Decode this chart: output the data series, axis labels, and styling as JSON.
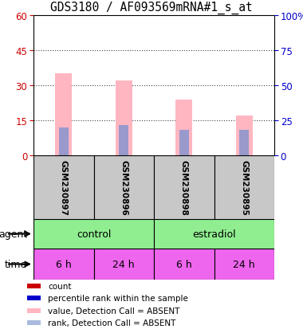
{
  "title": "GDS3180 / AF093569mRNA#1_s_at",
  "samples": [
    "GSM230897",
    "GSM230896",
    "GSM230898",
    "GSM230895"
  ],
  "pink_bar_values": [
    35,
    32,
    24,
    17
  ],
  "blue_bar_values": [
    12,
    13,
    11,
    11
  ],
  "pink_bar_color": "#FFB6C1",
  "blue_bar_color": "#9999CC",
  "left_ylim": [
    0,
    60
  ],
  "right_ylim": [
    0,
    100
  ],
  "left_yticks": [
    0,
    15,
    30,
    45,
    60
  ],
  "right_yticks": [
    0,
    25,
    50,
    75,
    100
  ],
  "left_tick_color": "#CC0000",
  "right_tick_color": "#0000CC",
  "agent_labels": [
    [
      "control",
      0,
      2
    ],
    [
      "estradiol",
      2,
      4
    ]
  ],
  "agent_color": "#90EE90",
  "agent_color_dark": "#44CC44",
  "time_labels": [
    "6 h",
    "24 h",
    "6 h",
    "24 h"
  ],
  "time_color": "#EE66EE",
  "time_color_dark": "#BB44BB",
  "sample_box_color": "#C8C8C8",
  "legend_colors": [
    "#CC0000",
    "#0000CC",
    "#FFB6C1",
    "#AABBDD"
  ],
  "legend_labels": [
    "count",
    "percentile rank within the sample",
    "value, Detection Call = ABSENT",
    "rank, Detection Call = ABSENT"
  ],
  "title_fontsize": 10.5
}
